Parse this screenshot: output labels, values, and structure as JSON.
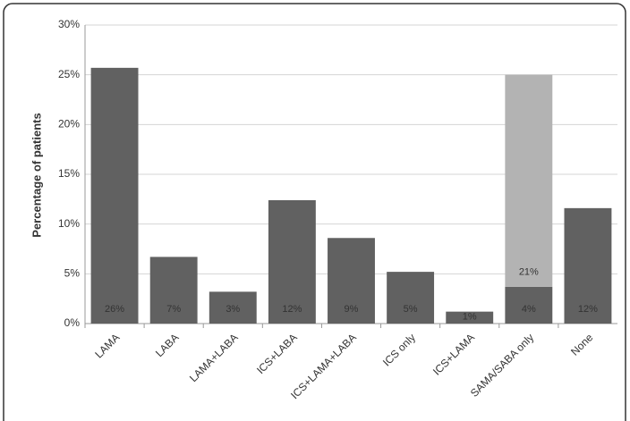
{
  "chart_data": {
    "type": "stacked_bar",
    "y_label": "Percentage of patients",
    "categories": [
      "LAMA",
      "LABA",
      "LAMA+LABA",
      "ICS+LABA",
      "ICS+LAMA+LABA",
      "ICS only",
      "ICS+LAMA",
      "SAMA/SABA only",
      "None"
    ],
    "series": [
      {
        "color": "#616161",
        "values": [
          25.7,
          6.7,
          3.2,
          12.4,
          8.6,
          5.2,
          1.2,
          3.7,
          11.6
        ],
        "value_labels": [
          "26%",
          "7%",
          "3%",
          "12%",
          "9%",
          "5%",
          "1%",
          "4%",
          "12%"
        ]
      },
      {
        "color": "#b3b3b3",
        "values": [
          null,
          null,
          null,
          null,
          null,
          null,
          null,
          21.3,
          null
        ],
        "value_labels": [
          null,
          null,
          null,
          null,
          null,
          null,
          null,
          "21%",
          null
        ]
      }
    ],
    "ylim": [
      0,
      30
    ],
    "yticks": [
      {
        "value": 0,
        "label": "0%"
      },
      {
        "value": 5,
        "label": "5%"
      },
      {
        "value": 10,
        "label": "10%"
      },
      {
        "value": 15,
        "label": "15%"
      },
      {
        "value": 20,
        "label": "20%"
      },
      {
        "value": 25,
        "label": "25%"
      },
      {
        "value": 30,
        "label": "30%"
      }
    ],
    "grid": true
  }
}
